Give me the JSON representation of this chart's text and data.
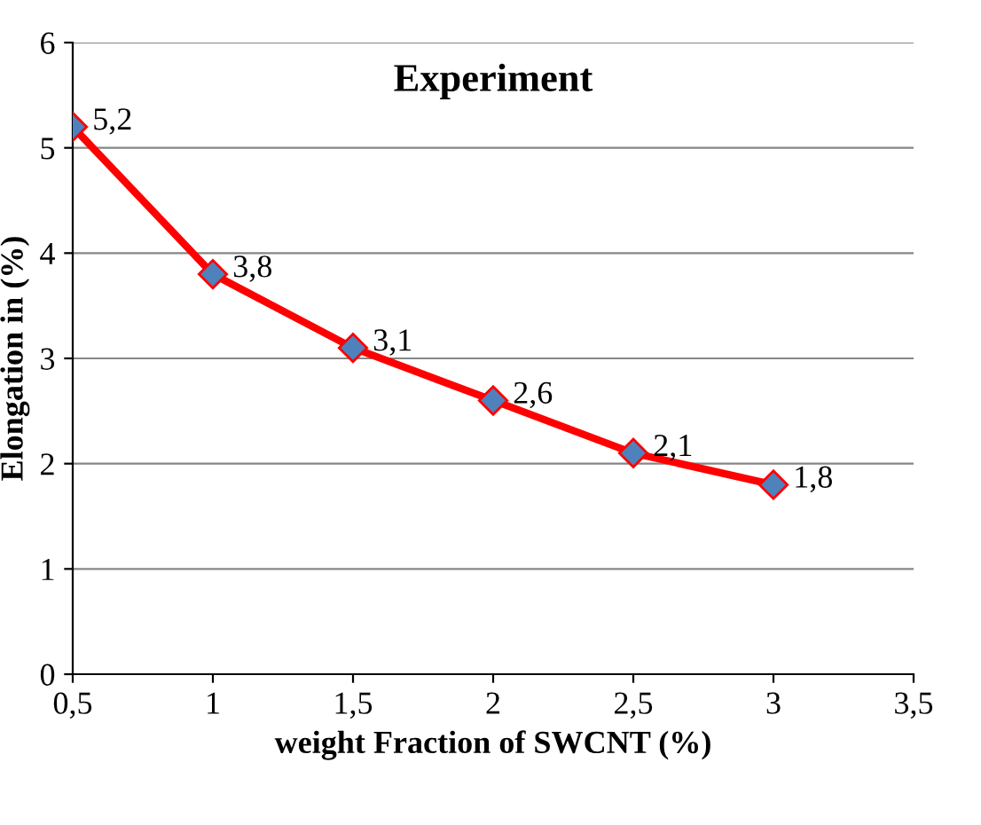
{
  "chart_data": {
    "type": "line",
    "title": "Experiment",
    "xlabel": "weight Fraction of SWCNT (%)",
    "ylabel": "Elongation in (%)",
    "x": [
      0.5,
      1,
      1.5,
      2,
      2.5,
      3
    ],
    "series": [
      {
        "color": "#ff0000",
        "values": [
          5.2,
          3.8,
          3.1,
          2.6,
          2.1,
          1.8
        ],
        "value_labels": [
          "5,2",
          "3,8",
          "3,1",
          "2,6",
          "2,1",
          "1,8"
        ]
      }
    ],
    "xlim": [
      0.5,
      3.5
    ],
    "xticks": [
      {
        "value": 0.5,
        "label": "0,5"
      },
      1,
      {
        "value": 1.5,
        "label": "1,5"
      },
      2,
      {
        "value": 2.5,
        "label": "2,5"
      },
      3,
      {
        "value": 3.5,
        "label": "3,5"
      }
    ],
    "ylim": [
      0,
      6
    ],
    "yticks": [
      0,
      1,
      2,
      3,
      4,
      5,
      6
    ],
    "grid": "y",
    "marker": "diamond",
    "line_style": "solid",
    "legend": false
  }
}
